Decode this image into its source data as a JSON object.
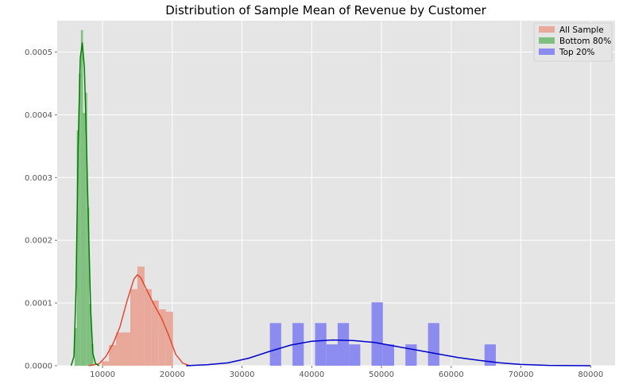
{
  "chart_data": {
    "type": "histogram",
    "title": "Distribution of Sample Mean of Revenue by Customer",
    "xlabel": "",
    "ylabel": "",
    "xlim": [
      3500,
      83500
    ],
    "ylim": [
      0,
      0.00055
    ],
    "x_ticks": [
      10000,
      20000,
      30000,
      40000,
      50000,
      60000,
      70000,
      80000
    ],
    "x_tick_labels": [
      "10000",
      "20000",
      "30000",
      "40000",
      "50000",
      "60000",
      "70000",
      "80000"
    ],
    "y_ticks": [
      0,
      0.0001,
      0.0002,
      0.0003,
      0.0004,
      0.0005
    ],
    "y_tick_labels": [
      "0.0000",
      "0.0001",
      "0.0002",
      "0.0003",
      "0.0004",
      "0.0005"
    ],
    "grid": true,
    "legend_position": "top-right",
    "series": [
      {
        "name": "All Sample",
        "color": "#e24a33",
        "bar_color": "#e8a89a",
        "bin_edges": [
          9900,
          10920,
          11940,
          12960,
          13980,
          15000,
          16020,
          17040,
          18060,
          19080,
          20100
        ],
        "density": [
          7e-06,
          3.3e-05,
          5.3e-05,
          5.3e-05,
          0.000122,
          0.000158,
          0.000122,
          0.000104,
          9e-05,
          8.6e-05
        ],
        "kde": [
          [
            8000,
            0
          ],
          [
            9500,
            3e-06
          ],
          [
            10500,
            1.5e-05
          ],
          [
            11500,
            3.5e-05
          ],
          [
            12500,
            6.2e-05
          ],
          [
            13500,
            0.000103
          ],
          [
            14500,
            0.000138
          ],
          [
            15000,
            0.000145
          ],
          [
            15500,
            0.00014
          ],
          [
            16500,
            0.000117
          ],
          [
            17500,
            9.5e-05
          ],
          [
            18500,
            7.5e-05
          ],
          [
            19500,
            4.8e-05
          ],
          [
            20500,
            1.8e-05
          ],
          [
            21500,
            4e-06
          ],
          [
            22500,
            0
          ]
        ]
      },
      {
        "name": "Bottom 80%",
        "color": "#008000",
        "bar_color": "#7fbf7f",
        "bin_edges": [
          6000,
          6300,
          6600,
          6900,
          7200,
          7500,
          7800,
          8100,
          8400,
          8700
        ],
        "density": [
          6e-05,
          0.000375,
          0.000466,
          0.000535,
          0.000403,
          0.000435,
          0.000252,
          9.8e-05,
          3.5e-05
        ],
        "kde": [
          [
            5500,
            0
          ],
          [
            5900,
            1.5e-05
          ],
          [
            6200,
            0.000125
          ],
          [
            6500,
            0.000348
          ],
          [
            6800,
            0.00049
          ],
          [
            7100,
            0.000515
          ],
          [
            7400,
            0.000475
          ],
          [
            7700,
            0.00035
          ],
          [
            8000,
            0.000215
          ],
          [
            8300,
            9e-05
          ],
          [
            8600,
            2e-05
          ],
          [
            9000,
            3e-06
          ],
          [
            9500,
            0
          ]
        ]
      },
      {
        "name": "Top 20%",
        "color": "#0000cc",
        "bar_color": "#8b8bf0",
        "bin_edges": [
          34000,
          35620,
          37240,
          38860,
          40480,
          42100,
          43720,
          45340,
          46960,
          48580,
          50200,
          51820,
          53440,
          55060,
          56680,
          58300,
          59920,
          61540,
          63160,
          64780,
          66400,
          68000
        ],
        "density": [
          6.8e-05,
          0,
          6.8e-05,
          0,
          6.8e-05,
          3.4e-05,
          6.8e-05,
          3.4e-05,
          0,
          0.000101,
          3.4e-05,
          0,
          3.4e-05,
          0,
          6.8e-05,
          0,
          0,
          0,
          0,
          3.4e-05,
          0
        ],
        "kde": [
          [
            22000,
            0
          ],
          [
            25000,
            1.5e-06
          ],
          [
            28000,
            4.5e-06
          ],
          [
            31000,
            1.2e-05
          ],
          [
            34000,
            2.3e-05
          ],
          [
            37000,
            3.3e-05
          ],
          [
            40000,
            3.9e-05
          ],
          [
            43000,
            4.1e-05
          ],
          [
            46000,
            4e-05
          ],
          [
            49000,
            3.7e-05
          ],
          [
            52000,
            3.1e-05
          ],
          [
            55000,
            2.5e-05
          ],
          [
            58000,
            1.9e-05
          ],
          [
            61000,
            1.3e-05
          ],
          [
            64000,
            8.5e-06
          ],
          [
            67000,
            4.5e-06
          ],
          [
            70000,
            2e-06
          ],
          [
            74000,
            5e-07
          ],
          [
            80000,
            0
          ]
        ]
      }
    ]
  }
}
